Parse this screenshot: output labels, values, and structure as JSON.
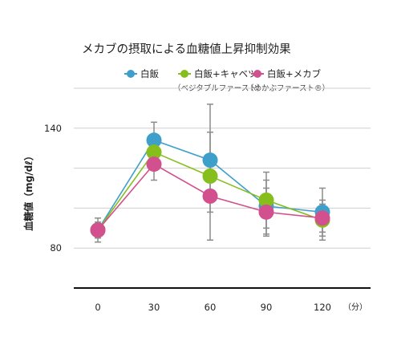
{
  "chart_data": {
    "type": "line",
    "title": "メカブの摂取による血糖値上昇抑制効果",
    "xlabel": "",
    "x_unit": "（分）",
    "ylabel": "血糖値（mg/dℓ）",
    "categories": [
      "0",
      "30",
      "60",
      "90",
      "120"
    ],
    "yticks": [
      80,
      140
    ],
    "ylim": [
      60,
      160
    ],
    "grid": true,
    "legend_position": "top",
    "series": [
      {
        "name": "白飯",
        "sublabel": "",
        "color": "#3f9fcb",
        "values": [
          89,
          134,
          124,
          101,
          98
        ],
        "err_low": [
          83,
          126,
          113,
          87,
          86
        ],
        "err_high": [
          95,
          143,
          138,
          114,
          110
        ]
      },
      {
        "name": "白飯+キャベツ",
        "sublabel": "（ベジタブルファースト）",
        "color": "#86be1c",
        "values": [
          89,
          128,
          116,
          104,
          94
        ],
        "err_low": [
          85,
          121,
          84,
          90,
          88
        ],
        "err_high": [
          93,
          135,
          152,
          118,
          102
        ]
      },
      {
        "name": "白飯+メカブ",
        "sublabel": "（めかぶファースト®）",
        "color": "#d2508d",
        "values": [
          89,
          122,
          106,
          98,
          95
        ],
        "err_low": [
          86,
          114,
          98,
          86,
          84
        ],
        "err_high": [
          92,
          130,
          114,
          110,
          104
        ]
      }
    ]
  }
}
